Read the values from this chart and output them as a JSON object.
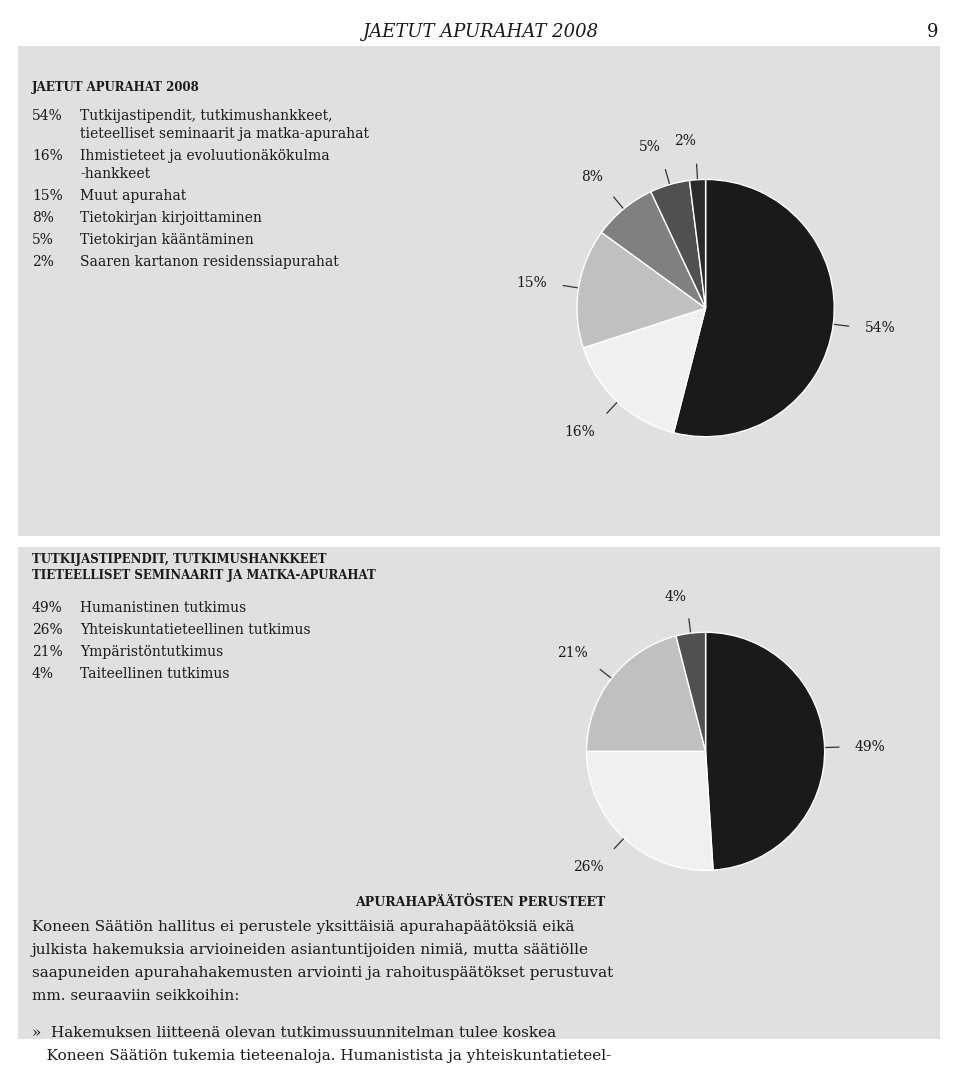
{
  "page_title": "JAETUT APURAHAT 2008",
  "page_number": "9",
  "bg_color": "#e0e0e0",
  "white_bg": "#ffffff",
  "panel1": {
    "title": "JAETUT APURAHAT 2008",
    "items": [
      {
        "pct": 54,
        "label": "Tutkijastipendit, tutkimushankkeet,\ntieteelliset seminaarit ja matka-apurahat",
        "color": "#1a1a1a"
      },
      {
        "pct": 16,
        "label": "Ihmistieteet ja evoluutionäkökulma\n-hankkeet",
        "color": "#f0f0f0"
      },
      {
        "pct": 15,
        "label": "Muut apurahat",
        "color": "#c0c0c0"
      },
      {
        "pct": 8,
        "label": "Tietokirjan kirjoittaminen",
        "color": "#808080"
      },
      {
        "pct": 5,
        "label": "Tietokirjan kääntäminen",
        "color": "#505050"
      },
      {
        "pct": 2,
        "label": "Saaren kartanon residenssiapurahat",
        "color": "#2a2a2a"
      }
    ]
  },
  "panel2": {
    "title_line1": "TUTKIJASTIPENDIT, TUTKIMUSHANKKEET",
    "title_line2": "TIETEELLISET SEMINAARIT JA MATKA-APURAHAT",
    "items": [
      {
        "pct": 49,
        "label": "Humanistinen tutkimus",
        "color": "#1a1a1a"
      },
      {
        "pct": 26,
        "label": "Yhteiskuntatieteellinen tutkimus",
        "color": "#f0f0f0"
      },
      {
        "pct": 21,
        "label": "Ympäristöntutkimus",
        "color": "#c0c0c0"
      },
      {
        "pct": 4,
        "label": "Taiteellinen tutkimus",
        "color": "#505050"
      }
    ]
  },
  "panel3": {
    "title": "APURAHAPÄÄTÖSTEN PERUSTEET",
    "body_lines": [
      "Koneen Säätiön hallitus ei perustele yksittäisiä apurahapäätöksiä eikä",
      "julkista hakemuksia arvioineiden asiantuntijoiden nimiä, mutta säätiölle",
      "saapuneiden apurahahakemusten arviointi ja rahoituspäätökset perustuvat",
      "mm. seuraaviin seikkoihin:"
    ],
    "quote_lines": [
      "»  Hakemuksen liitteenä olevan tutkimussuunnitelman tulee koskea",
      "   Koneen Säätiön tukemia tieteenaloja. Humanistista ja yhteiskuntatieteel-"
    ]
  }
}
